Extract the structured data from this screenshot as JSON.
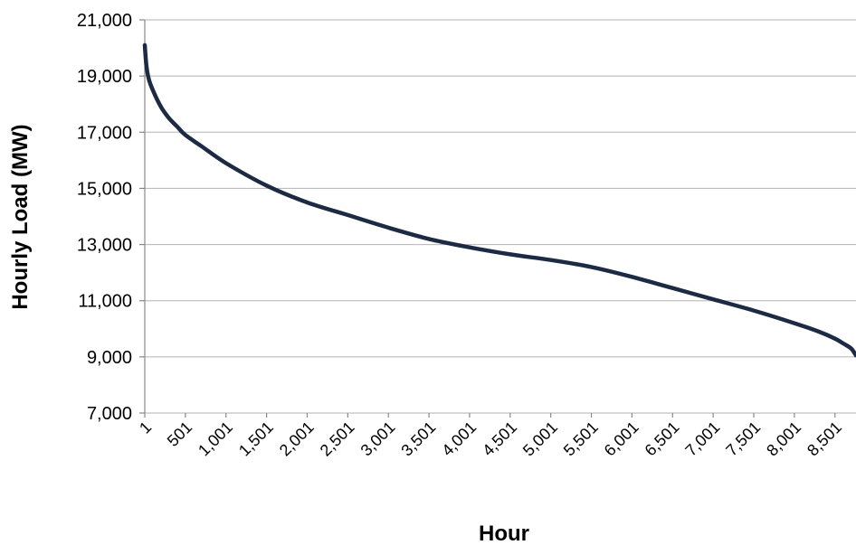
{
  "chart_data": {
    "type": "line",
    "title": "",
    "xlabel": "Hour",
    "ylabel": "Hourly Load (MW)",
    "ylim": [
      7000,
      21000
    ],
    "xlim": [
      1,
      8760
    ],
    "y_ticks": [
      7000,
      9000,
      11000,
      13000,
      15000,
      17000,
      19000,
      21000
    ],
    "y_tick_labels": [
      "7,000",
      "9,000",
      "11,000",
      "13,000",
      "15,000",
      "17,000",
      "19,000",
      "21,000"
    ],
    "x_ticks": [
      1,
      501,
      1001,
      1501,
      2001,
      2501,
      3001,
      3501,
      4001,
      4501,
      5001,
      5501,
      6001,
      6501,
      7001,
      7501,
      8001,
      8501
    ],
    "x_tick_labels": [
      "1",
      "501",
      "1,001",
      "1,501",
      "2,001",
      "2,501",
      "3,001",
      "3,501",
      "4,001",
      "4,501",
      "5,001",
      "5,501",
      "6,001",
      "6,501",
      "7,001",
      "7,501",
      "8,001",
      "8,501"
    ],
    "grid": "horizontal",
    "legend": "none",
    "series": [
      {
        "color": "#1c2a44",
        "x": [
          1,
          20,
          50,
          100,
          200,
          300,
          400,
          501,
          700,
          1001,
          1501,
          2001,
          2501,
          3001,
          3501,
          4001,
          4501,
          5001,
          5501,
          6001,
          6501,
          7001,
          7501,
          8001,
          8301,
          8501,
          8601,
          8700,
          8760
        ],
        "y": [
          20100,
          19400,
          18900,
          18500,
          17900,
          17500,
          17200,
          16900,
          16500,
          15900,
          15100,
          14500,
          14050,
          13600,
          13200,
          12900,
          12650,
          12450,
          12200,
          11850,
          11450,
          11050,
          10650,
          10200,
          9900,
          9650,
          9480,
          9300,
          9050
        ]
      }
    ]
  }
}
